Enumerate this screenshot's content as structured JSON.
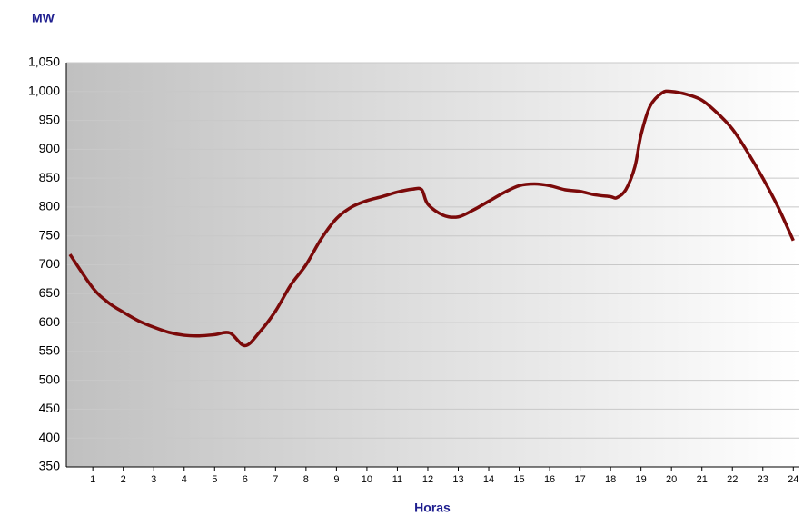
{
  "chart_data": {
    "type": "line",
    "y_axis_label": "MW",
    "x_axis_label": "Horas",
    "x": [
      0.25,
      1,
      1.5,
      2,
      2.5,
      3,
      3.5,
      4,
      4.5,
      5,
      5.5,
      6,
      6.5,
      7,
      7.5,
      8,
      8.5,
      9,
      9.5,
      10,
      10.5,
      11,
      11.5,
      11.8,
      12,
      12.5,
      13,
      13.5,
      14,
      14.5,
      15,
      15.5,
      16,
      16.5,
      17,
      17.5,
      18,
      18.2,
      18.5,
      18.8,
      19,
      19.3,
      19.7,
      20,
      20.5,
      21,
      21.5,
      22,
      22.5,
      23,
      23.5,
      24
    ],
    "series": [
      {
        "name": "MW",
        "color": "#7b0a0a",
        "values": [
          718,
          660,
          635,
          618,
          603,
          592,
          583,
          578,
          577,
          579,
          582,
          560,
          585,
          620,
          665,
          700,
          745,
          780,
          800,
          811,
          818,
          826,
          831,
          830,
          805,
          786,
          783,
          795,
          810,
          825,
          837,
          840,
          837,
          830,
          827,
          821,
          818,
          816,
          830,
          870,
          925,
          975,
          998,
          1000,
          995,
          985,
          963,
          935,
          895,
          850,
          800,
          742
        ]
      }
    ],
    "xlim": [
      0.13,
      24.2
    ],
    "xticks": [
      1,
      2,
      3,
      4,
      5,
      6,
      7,
      8,
      9,
      10,
      11,
      12,
      13,
      14,
      15,
      16,
      17,
      18,
      19,
      20,
      21,
      22,
      23,
      24
    ],
    "ylim": [
      350,
      1050
    ],
    "yticks": [
      350,
      400,
      450,
      500,
      550,
      600,
      650,
      700,
      750,
      800,
      850,
      900,
      950,
      {
        "value": 1000,
        "label": "1,000"
      },
      {
        "value": 1050,
        "label": "1,050"
      }
    ],
    "grid": true
  }
}
